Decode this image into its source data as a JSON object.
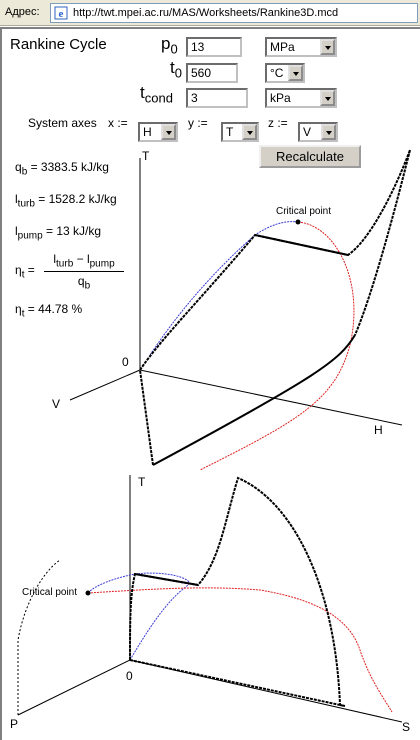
{
  "browser": {
    "address_label": "Адрес:",
    "url": "http://twt.mpei.ac.ru/MAS/Worksheets/Rankine3D.mcd"
  },
  "page": {
    "title": "Rankine Cycle",
    "inputs": {
      "p0": {
        "label": "p",
        "sub": "0",
        "value": "13",
        "unit": "MPa"
      },
      "t0": {
        "label": "t",
        "sub": "0",
        "value": "560",
        "unit": "°C"
      },
      "tcond": {
        "label": "t",
        "sub": "cond",
        "value": "3",
        "unit": "kPa"
      }
    },
    "axes": {
      "label": "System axes",
      "x_label": "x :=",
      "x_value": "H",
      "y_label": "y :=",
      "y_value": "T",
      "z_label": "z :=",
      "z_value": "V"
    },
    "recalc_label": "Recalculate"
  },
  "results": {
    "qb": {
      "sym": "q",
      "sub": "b",
      "text": " = 3383.5 kJ/kg"
    },
    "lturb": {
      "sym": "l",
      "sub": "turb",
      "text": " = 1528.2 kJ/kg"
    },
    "lpump": {
      "sym": "l",
      "sub": "pump",
      "text": " = 13 kJ/kg"
    },
    "eta_formula": {
      "sym": "η",
      "sub": "t",
      "eq": " =",
      "num": "l",
      "num_sub1": "turb",
      "minus": " − l",
      "num_sub2": "pump",
      "den": "q",
      "den_sub": "b"
    },
    "eta_value": {
      "sym": "η",
      "sub": "t",
      "text": " = 44.78 %"
    }
  },
  "chart_data": [
    {
      "type": "line",
      "title": "",
      "axes_labels": {
        "vertical": "T",
        "depth": "V",
        "horizontal": "H",
        "origin": "0"
      },
      "annotations": [
        "Critical point"
      ],
      "series_colors": {
        "saturation_left": "#3a3ad8",
        "saturation_right": "#e02020",
        "cycle": "#000000"
      }
    },
    {
      "type": "line",
      "title": "",
      "axes_labels": {
        "vertical": "T",
        "depth": "P",
        "horizontal": "S",
        "origin": "0"
      },
      "annotations": [
        "Critical point"
      ],
      "series_colors": {
        "saturation_left": "#3a3ad8",
        "saturation_right": "#e02020",
        "cycle": "#000000"
      }
    }
  ]
}
